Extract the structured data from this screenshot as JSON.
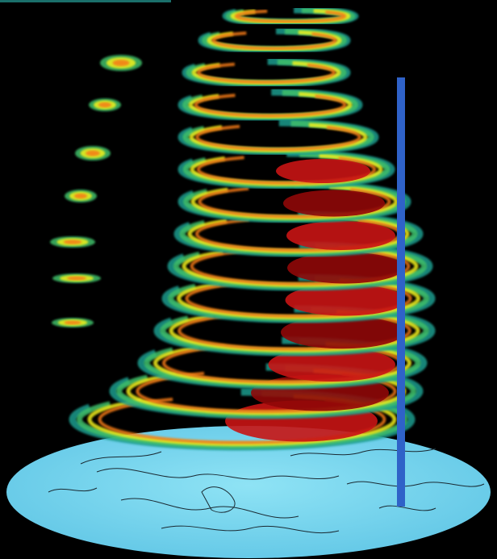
{
  "scene": {
    "description_free": true,
    "colors": {
      "background": "#000000",
      "top_bar": "#1a6f6b",
      "globe_fill": "#8fe3f5",
      "globe_fill_dark": "#62c7e6",
      "coastlines": "#1a2a33",
      "axis_line": "#2f62c8",
      "vortex_red": "#c81414",
      "vortex_dark_red": "#8f0808",
      "vortex_orange": "#f57a12",
      "vortex_yellow": "#f2f01e",
      "vortex_green": "#3fc06a",
      "vortex_teal": "#1d9c8e"
    },
    "icons": [
      "globe-disk",
      "vortex-bands",
      "vertical-axis-line"
    ]
  }
}
